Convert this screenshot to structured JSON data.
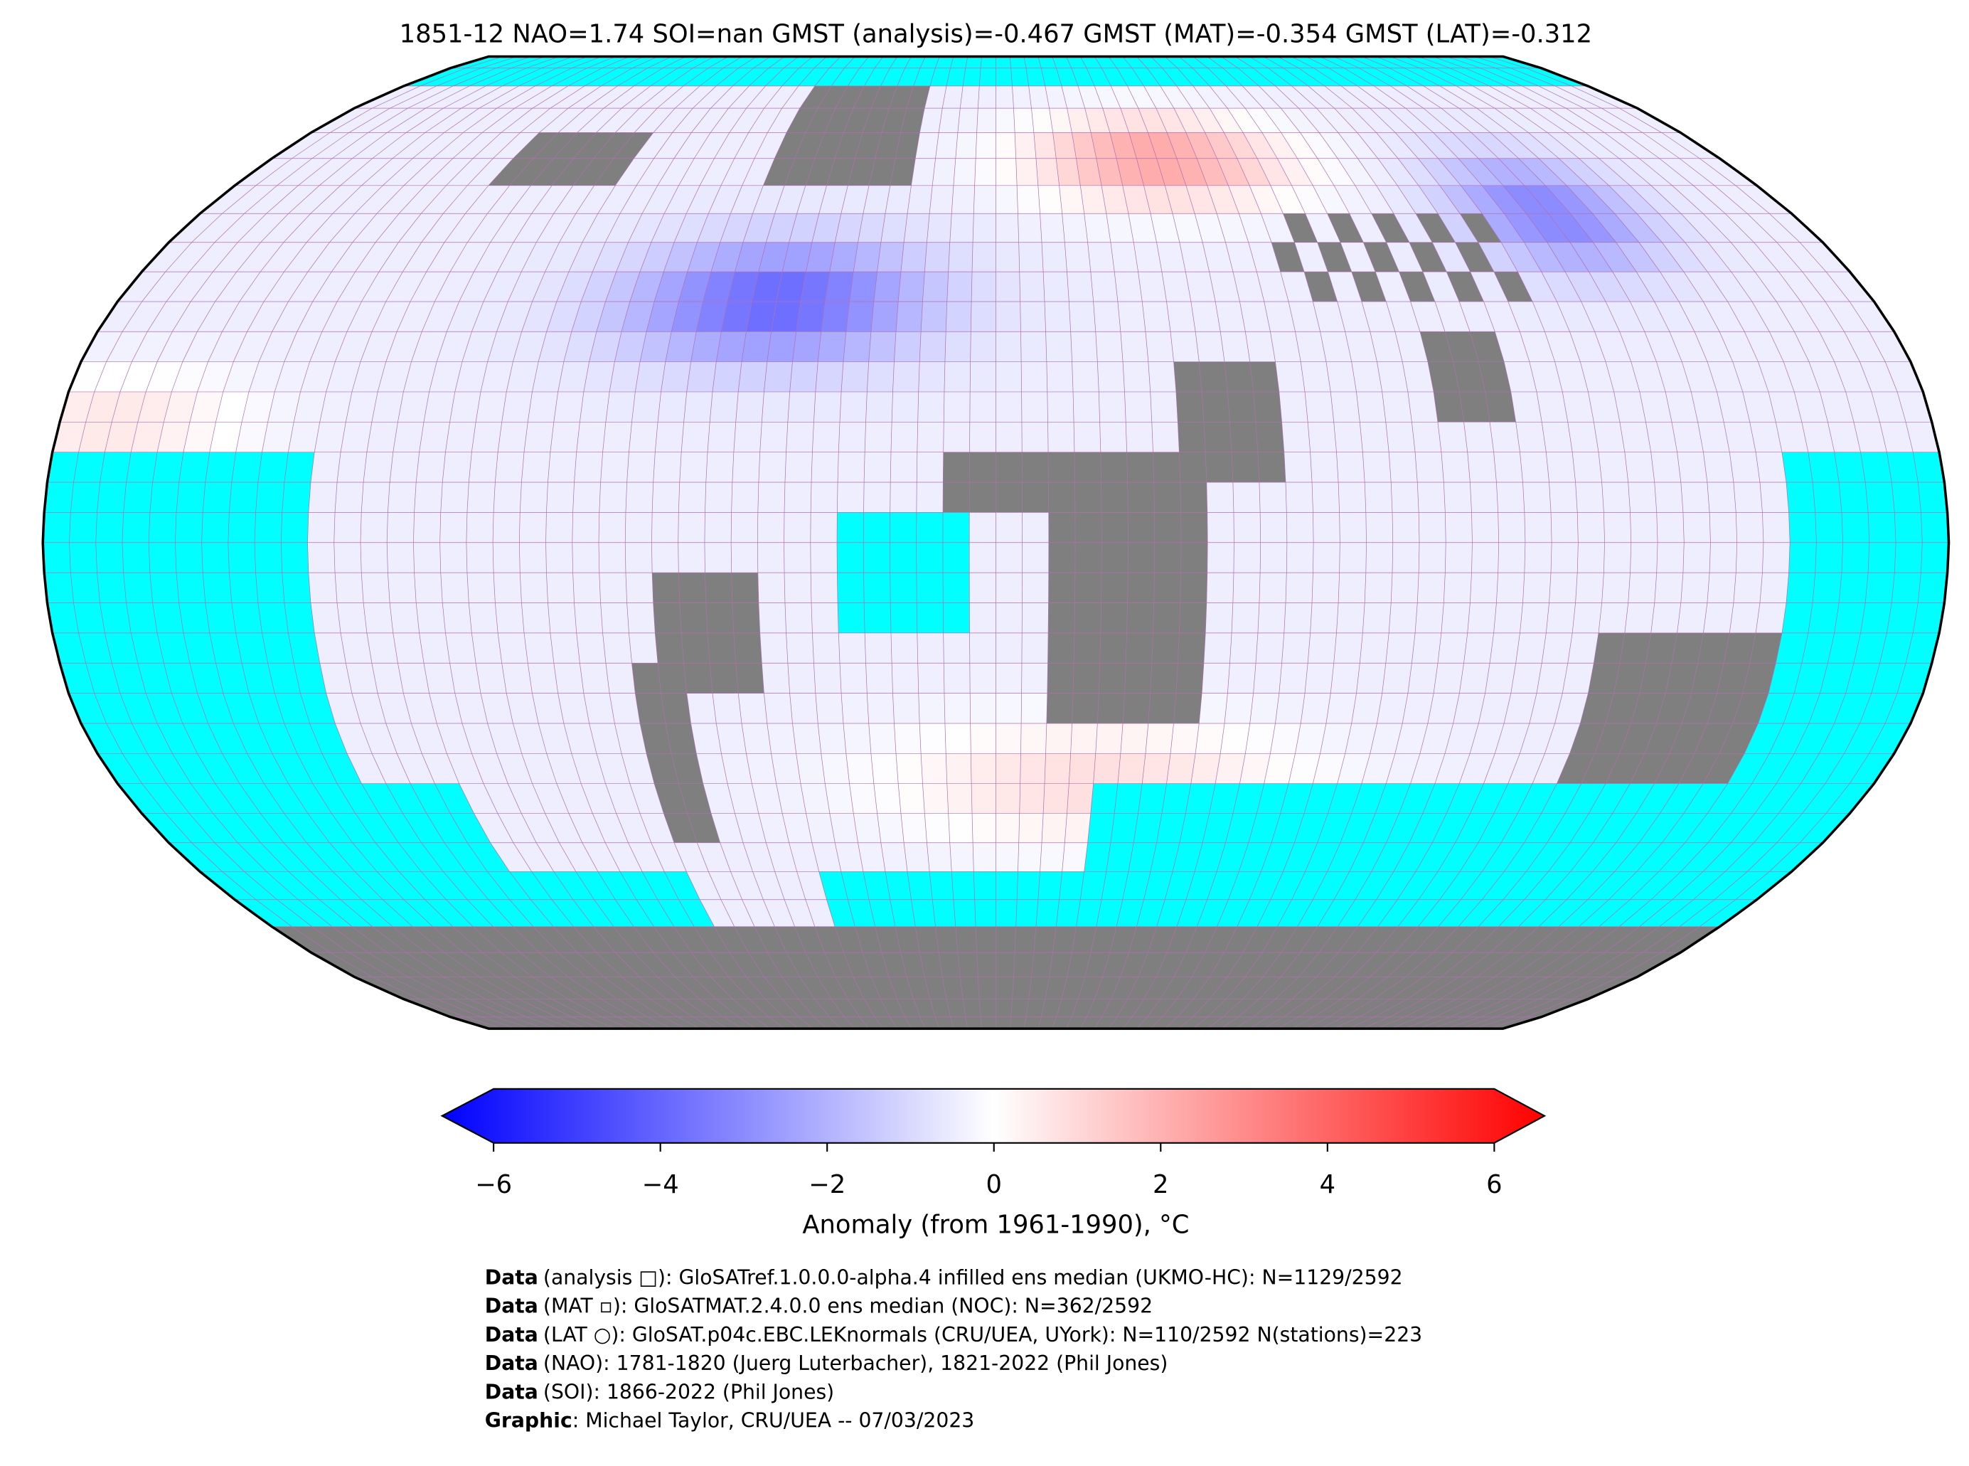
{
  "title": "1851-12 NAO=1.74 SOI=nan GMST (analysis)=-0.467 GMST (MAT)=-0.354 GMST (LAT)=-0.312",
  "colorbar": {
    "label": "Anomaly (from 1961-1990), °C",
    "lim": [
      -6,
      6
    ],
    "ticks": [
      {
        "value": -6,
        "label": "−6"
      },
      {
        "value": -4,
        "label": "−4"
      },
      {
        "value": -2,
        "label": "−2"
      },
      0,
      2,
      4,
      6
    ]
  },
  "credits": [
    {
      "key": "Data",
      "text": "(analysis □): GloSATref.1.0.0.0-alpha.4 infilled ens median (UKMO-HC): N=1129/2592"
    },
    {
      "key": "Data",
      "text": "(MAT ▫): GloSATMAT.2.4.0.0 ens median (NOC): N=362/2592"
    },
    {
      "key": "Data",
      "text": "(LAT ○): GloSAT.p04c.EBC.LEKnormals (CRU/UEA, UYork): N=110/2592 N(stations)=223"
    },
    {
      "key": "Data",
      "text": "(NAO): 1781-1820 (Juerg Luterbacher), 1821-2022 (Phil Jones)"
    },
    {
      "key": "Data",
      "text": "(SOI): 1866-2022 (Phil Jones)"
    },
    {
      "key": "Graphic",
      "text": ": Michael Taylor, CRU/UEA -- 07/03/2023"
    }
  ]
}
